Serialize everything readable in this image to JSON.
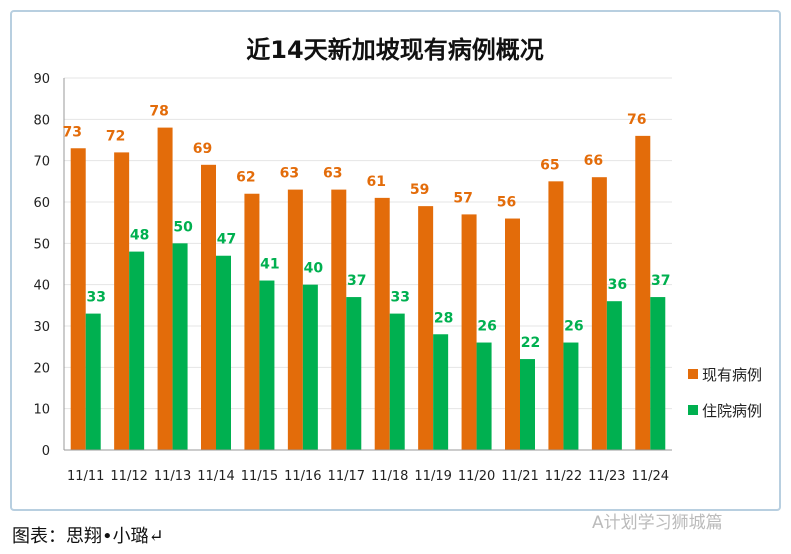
{
  "chart_data": {
    "type": "bar",
    "title": "近14天新加坡现有病例概况",
    "categories": [
      "11/11",
      "11/12",
      "11/13",
      "11/14",
      "11/15",
      "11/16",
      "11/17",
      "11/18",
      "11/19",
      "11/20",
      "11/21",
      "11/22",
      "11/23",
      "11/24"
    ],
    "series": [
      {
        "name": "现有病例",
        "color": "#e36c0a",
        "values": [
          73,
          72,
          78,
          69,
          62,
          63,
          63,
          61,
          59,
          57,
          56,
          65,
          66,
          76
        ]
      },
      {
        "name": "住院病例",
        "color": "#00b050",
        "values": [
          33,
          48,
          50,
          47,
          41,
          40,
          37,
          33,
          28,
          26,
          22,
          26,
          36,
          37
        ]
      }
    ],
    "ylim": [
      0,
      90
    ],
    "yticks": [
      0,
      10,
      20,
      30,
      40,
      50,
      60,
      70,
      80,
      90
    ],
    "grid": true,
    "legend": "right",
    "data_labels": true
  },
  "caption": "图表：思翔•小璐↵",
  "watermark": "A计划学习狮城篇"
}
